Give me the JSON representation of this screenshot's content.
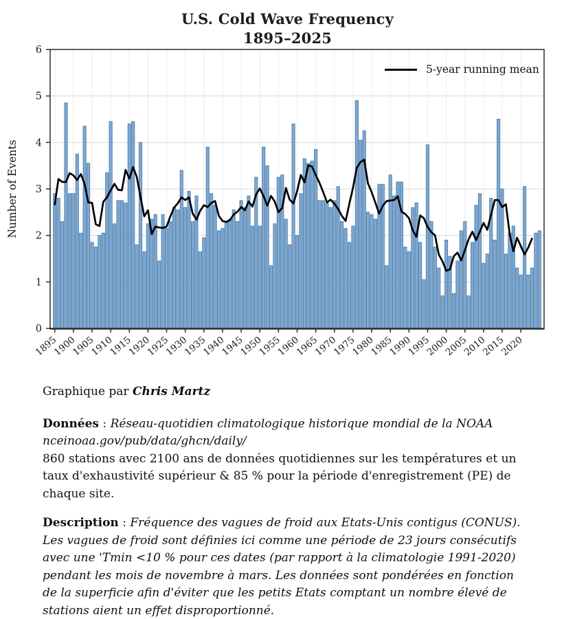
{
  "chart_data": {
    "type": "bar",
    "title": "U.S. Cold Wave Frequency",
    "subtitle": "1895–2025",
    "xlabel": "",
    "ylabel": "Number of Events",
    "ylim": [
      0,
      6
    ],
    "y_ticks": [
      0,
      1,
      2,
      3,
      4,
      5,
      6
    ],
    "x_ticks": [
      1895,
      1900,
      1905,
      1910,
      1915,
      1920,
      1925,
      1930,
      1935,
      1940,
      1945,
      1950,
      1955,
      1960,
      1965,
      1970,
      1975,
      1980,
      1985,
      1990,
      1995,
      2000,
      2005,
      2010,
      2015,
      2020
    ],
    "grid": true,
    "legend_label": "5-year running mean",
    "legend_position": "top-right",
    "overlay_line": "5-year centered running mean computed from values",
    "colors": {
      "bar_fill": "#7FA9D2",
      "bar_edge": "#4F7DA9",
      "mean_line": "#000000",
      "grid_h": "#d9d9d9",
      "grid_v": "#ebebeb",
      "frame": "#2b2b2b"
    },
    "years": [
      1895,
      1896,
      1897,
      1898,
      1899,
      1900,
      1901,
      1902,
      1903,
      1904,
      1905,
      1906,
      1907,
      1908,
      1909,
      1910,
      1911,
      1912,
      1913,
      1914,
      1915,
      1916,
      1917,
      1918,
      1919,
      1920,
      1921,
      1922,
      1923,
      1924,
      1925,
      1926,
      1927,
      1928,
      1929,
      1930,
      1931,
      1932,
      1933,
      1934,
      1935,
      1936,
      1937,
      1938,
      1939,
      1940,
      1941,
      1942,
      1943,
      1944,
      1945,
      1946,
      1947,
      1948,
      1949,
      1950,
      1951,
      1952,
      1953,
      1954,
      1955,
      1956,
      1957,
      1958,
      1959,
      1960,
      1961,
      1962,
      1963,
      1964,
      1965,
      1966,
      1967,
      1968,
      1969,
      1970,
      1971,
      1972,
      1973,
      1974,
      1975,
      1976,
      1977,
      1978,
      1979,
      1980,
      1981,
      1982,
      1983,
      1984,
      1985,
      1986,
      1987,
      1988,
      1989,
      1990,
      1991,
      1992,
      1993,
      1994,
      1995,
      1996,
      1997,
      1998,
      1999,
      2000,
      2001,
      2002,
      2003,
      2004,
      2005,
      2006,
      2007,
      2008,
      2009,
      2010,
      2011,
      2012,
      2013,
      2014,
      2015,
      2016,
      2017,
      2018,
      2019,
      2020,
      2021,
      2022,
      2023,
      2024,
      2025
    ],
    "values": [
      2.9,
      2.8,
      2.3,
      4.85,
      2.9,
      2.9,
      3.75,
      2.05,
      4.35,
      3.55,
      1.85,
      1.75,
      2.0,
      2.05,
      3.35,
      4.45,
      2.25,
      2.75,
      2.75,
      2.7,
      4.4,
      4.45,
      1.8,
      4.0,
      1.65,
      2.25,
      2.35,
      2.45,
      1.45,
      2.45,
      2.15,
      2.3,
      2.6,
      2.55,
      3.4,
      2.6,
      2.95,
      2.3,
      2.85,
      1.65,
      1.95,
      3.9,
      2.9,
      2.65,
      2.1,
      2.15,
      2.3,
      2.35,
      2.55,
      2.3,
      2.75,
      2.6,
      2.85,
      2.2,
      3.25,
      2.2,
      3.9,
      3.5,
      1.35,
      2.25,
      3.25,
      3.3,
      2.35,
      1.8,
      4.4,
      2.0,
      2.9,
      3.65,
      3.55,
      3.6,
      3.85,
      2.75,
      2.75,
      2.7,
      2.6,
      2.75,
      3.05,
      2.3,
      2.15,
      1.85,
      2.2,
      4.9,
      4.05,
      4.25,
      2.5,
      2.45,
      2.35,
      3.1,
      3.1,
      1.35,
      3.3,
      2.85,
      3.15,
      3.15,
      1.75,
      1.65,
      2.6,
      2.7,
      1.85,
      1.05,
      3.95,
      2.3,
      1.75,
      1.3,
      0.7,
      1.9,
      1.55,
      0.75,
      1.45,
      2.1,
      2.3,
      0.7,
      1.85,
      2.65,
      2.9,
      1.4,
      1.6,
      2.8,
      1.9,
      4.5,
      3.0,
      1.6,
      2.05,
      2.2,
      1.3,
      1.15,
      3.05,
      1.15,
      1.3,
      2.05,
      2.1
    ]
  },
  "captions": {
    "byline_prefix": "Graphique par ",
    "byline_author": "Chris Martz",
    "donnees": {
      "label": "Données",
      "colon": " : ",
      "italic_text": "Réseau-quotidien climatologique historique mondial de la NOAA\nnceinoaa.gov/pub/data/ghcn/daily/",
      "regular_text": "\n860 stations avec 2100 ans de données quotidiennes sur les températures et un taux d'exhaustivité supérieur & 85 % pour la période d'enregistrement (PE) de chaque site."
    },
    "description": {
      "label": "Description",
      "colon": " : ",
      "italic_text": "Fréquence des vagues de froid aux Etats-Unis contigus (CONUS). Les vagues de froid sont définies ici comme une période de 23 jours consécutifs avec une 'Tmin <10 % pour ces dates (par rapport à la climatologie 1991-2020) pendant les mois de novembre à mars. Les données sont pondérées en fonction de la superficie afin d'éviter que les petits Etats comptant un nombre élevé de stations aient un effet disproportionné."
    }
  }
}
